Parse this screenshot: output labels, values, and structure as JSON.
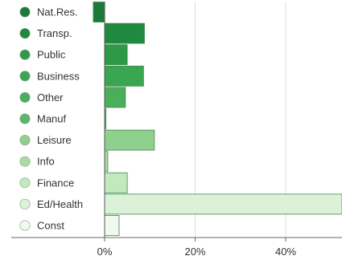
{
  "chart_data": {
    "type": "bar",
    "orientation": "horizontal",
    "categories": [
      "Nat.Res.",
      "Transp.",
      "Public",
      "Business",
      "Other",
      "Manuf",
      "Leisure",
      "Info",
      "Finance",
      "Ed/Health",
      "Const"
    ],
    "values": [
      -2.5,
      8.8,
      5.0,
      8.6,
      4.6,
      0.3,
      11.0,
      0.7,
      5.0,
      53.0,
      3.2
    ],
    "xlim": [
      -3,
      53
    ],
    "xticks": [
      0,
      20,
      40
    ],
    "xtick_labels": [
      "0%",
      "20%",
      "40%"
    ],
    "grid": "vertical",
    "legend": "left",
    "colors": [
      "#1b7a3a",
      "#1f8a3f",
      "#2e9a47",
      "#3aa651",
      "#4aae5b",
      "#5db66a",
      "#8fd08f",
      "#a8dca4",
      "#c2e8bd",
      "#dcf2d8",
      "#f0f9ee"
    ],
    "marker_colors": [
      "#1b7a3a",
      "#1f8a3f",
      "#2e9a47",
      "#3aa651",
      "#4aae5b",
      "#5db66a",
      "#8fd08f",
      "#a8dca4",
      "#c2e8bd",
      "#dcf2d8",
      "#f0f9ee"
    ],
    "bar_stroke": "#3f8a4f"
  }
}
